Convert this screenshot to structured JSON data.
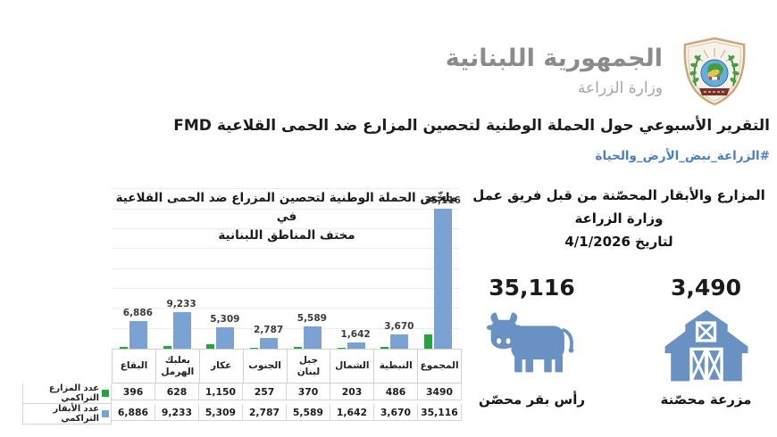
{
  "header": {
    "gov_name": "الجمهورية اللبنانية",
    "ministry": "وزارة الزراعة",
    "logo": "ministry-of-agriculture-emblem"
  },
  "report": {
    "title": "التقرير الأسبوعي حول الحملة الوطنية لتحصين المزارع ضد الحمى القلاعية FMD",
    "hashtag": "#الزراعة_نبض_الأرض_والحياة"
  },
  "chart_data": {
    "type": "bar",
    "title": "ملخّص الحملة الوطنية لتحصين المزراع ضد الحمى القلاعية في مختف المناطق اللبنانية",
    "title_line1": "ملخّص الحملة الوطنية لتحصين المزراع ضد الحمى القلاعية في",
    "title_line2": "مختف المناطق اللبنانية",
    "categories": [
      "البقاع",
      "بعلبك الهرمل",
      "عكار",
      "الجنوب",
      "جبل لبنان",
      "الشمال",
      "النبطية",
      "المجموع"
    ],
    "series": [
      {
        "name": "عدد المزارع التراكمي",
        "color": "#1fa73c",
        "values": [
          396,
          628,
          1150,
          257,
          370,
          203,
          486,
          3490
        ],
        "labels": [
          "396",
          "628",
          "1,150",
          "257",
          "370",
          "203",
          "486",
          "3490"
        ]
      },
      {
        "name": "عدد الأبقار التراكمي",
        "color": "#7aa3d4",
        "values": [
          6886,
          9233,
          5309,
          2787,
          5589,
          1642,
          3670,
          35116
        ],
        "labels": [
          "6,886",
          "9,233",
          "5,309",
          "2,787",
          "5,589",
          "1,642",
          "3,670",
          "35,116"
        ]
      }
    ],
    "value_labels_shown_for": "عدد الأبقار التراكمي",
    "ylim": [
      0,
      35116
    ],
    "gridline_step": 5000,
    "grid": true,
    "legend_position": "table-left"
  },
  "summary": {
    "heading_line1": "المزارع والأبقار المحصّنة من قبل فريق عمل وزارة الزراعة",
    "heading_line2": "لتاريخ 4/1/2026",
    "stats": [
      {
        "value": "35,116",
        "label": "رأس بقر محصّن",
        "icon": "cow-icon"
      },
      {
        "value": "3,490",
        "label": "مزرعة محصّنة",
        "icon": "barn-icon"
      }
    ]
  },
  "colors": {
    "cattle_bar": "#7aa3d4",
    "farm_bar": "#1fa73c",
    "icon_blue": "#6992c2",
    "hashtag_blue": "#4a80c2",
    "gov_gray": "#8b8b8b",
    "gridline": "#ececec"
  }
}
